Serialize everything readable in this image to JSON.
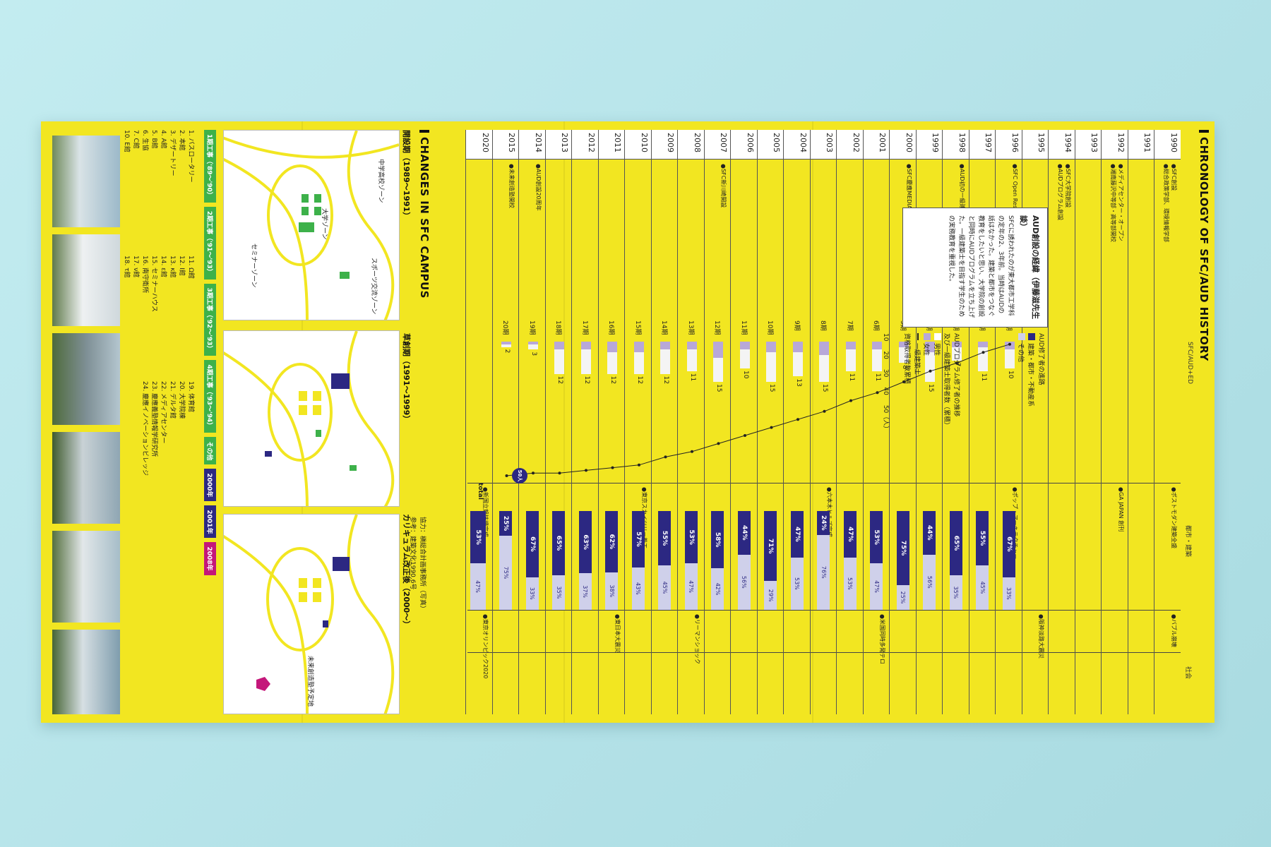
{
  "chronology": {
    "title": "CHRONOLOGY OF SFC/AUD HISTORY",
    "columns": [
      "SFC/AUD+ED",
      "都市・建築",
      "社会"
    ],
    "years": [
      "1990",
      "1991",
      "1992",
      "1993",
      "1994",
      "1995",
      "1996",
      "1997",
      "1998",
      "1999",
      "2000",
      "2001",
      "2002",
      "2003",
      "2004",
      "2005",
      "2006",
      "2007",
      "2008",
      "2009",
      "2010",
      "2011",
      "2012",
      "2013",
      "2014",
      "2015",
      "2020"
    ],
    "sfc_events": [
      {
        "year_index": 0,
        "text": "●SFC創設"
      },
      {
        "year_index": 0,
        "text": "●総合政策学部、環境情報学部"
      },
      {
        "year_index": 2,
        "text": "●メディアセンター・オープン"
      },
      {
        "year_index": 2,
        "text": "●湘南藤沢中等部・高等部開校"
      },
      {
        "year_index": 4,
        "text": "●SFC大学院創設"
      },
      {
        "year_index": 4,
        "text": "●AUDプログラム創設"
      },
      {
        "year_index": 6,
        "text": "●SFC Open Research Forum初開催"
      },
      {
        "year_index": 8,
        "text": "●AUD初の一級建築士誕生"
      },
      {
        "year_index": 10,
        "text": "●SFC慶應MEDIAセンター"
      },
      {
        "year_index": 17,
        "text": "●SFC新川崎開設"
      },
      {
        "year_index": 24,
        "text": "●AUD創設20周年"
      },
      {
        "year_index": 25,
        "text": "●未来創造塾開校"
      }
    ],
    "city_events": [
      {
        "year_index": 0,
        "text": "●ポストモダン建築全盛"
      },
      {
        "year_index": 2,
        "text": "●GA JAPAN 創刊"
      },
      {
        "year_index": 6,
        "text": "●ポップ・アーキテクチャー"
      },
      {
        "year_index": 13,
        "text": "●六本木ヒルズ完成"
      },
      {
        "year_index": 20,
        "text": "●東京スカイツリー着工"
      },
      {
        "year_index": 26,
        "text": "●新国立競技場完成"
      }
    ],
    "society_events": [
      {
        "year_index": 0,
        "text": "●バブル崩壊"
      },
      {
        "year_index": 5,
        "text": "●阪神淡路大震災"
      },
      {
        "year_index": 11,
        "text": "●米国同時多発テロ"
      },
      {
        "year_index": 18,
        "text": "●リーマンショック"
      },
      {
        "year_index": 21,
        "text": "●東日本大震災"
      },
      {
        "year_index": 26,
        "text": "●東京オリンピック2020"
      }
    ],
    "info_box": {
      "title": "AUD創設の経緯（伊藤滋先生談）",
      "text": "SFCに誘われたのが東大都市工学科の定年の2、3年前。当時はAUDの話はなかった。建築と都市をつなぐ教育をしたいと思い、大学院の創設と同時にAUDプログラムを立ち上げた。一級建築士を目指す学生のための実務教育を重視した。"
    },
    "legend": {
      "enroll_title": "AUDプログラム修了者の推移",
      "enroll_sub": "及び一級建築士取得者数（累積）",
      "male": "男性",
      "female": "女性",
      "architect": "一級建築士",
      "architect_sub": "資格取得者数累積",
      "career_title": "AUD修了者の進路",
      "career_a": "建築・都市・不動産系",
      "career_b": "その他",
      "scale": [
        "10",
        "20",
        "30",
        "40",
        "50（人）"
      ]
    },
    "cohorts": [
      "1期",
      "2期",
      "3期",
      "4期",
      "5期",
      "6期",
      "7期",
      "8期",
      "9期",
      "10期",
      "11期",
      "12期",
      "13期",
      "14期",
      "15期",
      "16期",
      "17期",
      "18期",
      "19期",
      "20期"
    ],
    "cohort_totals": [
      10,
      11,
      7,
      15,
      8,
      11,
      11,
      15,
      13,
      15,
      10,
      15,
      11,
      12,
      12,
      12,
      12,
      12,
      3,
      2
    ],
    "female_counts": [
      3,
      2,
      2,
      4,
      2,
      3,
      3,
      5,
      4,
      4,
      3,
      6,
      3,
      3,
      4,
      4,
      3,
      3,
      1,
      1
    ],
    "architect_cumulative": [
      1,
      4,
      8,
      11,
      15,
      19,
      22,
      26,
      29,
      32,
      35,
      38,
      41,
      43,
      46,
      47,
      48,
      49,
      49,
      50
    ],
    "architect_final_label": "50人",
    "career_percent": [
      67,
      55,
      65,
      44,
      75,
      53,
      47,
      24,
      47,
      71,
      44,
      58,
      53,
      55,
      57,
      62,
      63,
      65,
      67,
      25
    ],
    "total_label": "total",
    "total_percent": [
      "53%",
      "47%"
    ]
  },
  "campus": {
    "title": "CHANGES IN SFC CAMPUS",
    "periods": [
      "開設期（1989〜1991）",
      "草創期（1991〜1999）",
      "カリキュラム改正後（2000〜）"
    ],
    "zones": [
      "中学高校ゾーン",
      "スポーツ交流ゾーン",
      "大学ゾーン",
      "セミナーゾーン"
    ],
    "future_label": "未来創造塾予定地",
    "phases": [
      {
        "label": "1期工事（'89〜'90）",
        "color": "#3db14a"
      },
      {
        "label": "2期工事（'91〜'93）",
        "color": "#3db14a"
      },
      {
        "label": "3期工事（'92〜'93）",
        "color": "#3db14a"
      },
      {
        "label": "4期工事（'93〜'94）",
        "color": "#3db14a"
      },
      {
        "label": "その他",
        "color": "#3db14a"
      },
      {
        "label": "2000年",
        "color": "#2c2882"
      },
      {
        "label": "2001年",
        "color": "#2c2882"
      },
      {
        "label": "2008年",
        "color": "#c4177a"
      }
    ],
    "buildings": [
      "1. バスロータリー",
      "2. 本館",
      "3. デザートリー",
      "4. A館",
      "5. B館",
      "6. 生協",
      "7. C館",
      "10. E館",
      "11. Ω館",
      "12. I館",
      "13. κ館",
      "14. ε館",
      "15. セミナーハウス",
      "16. 南守衛所",
      "17. ν館",
      "18. τ館",
      "19. 体育館",
      "20. 大学院棟",
      "21. デルタ館",
      "22. メディアセンター",
      "23. 慶應義塾情報学研究所",
      "24. 慶應イノベーションビレッジ"
    ],
    "credit": [
      "協力：槇総合計画事務所（写真）",
      "参考：建築文化1990.6号"
    ]
  }
}
